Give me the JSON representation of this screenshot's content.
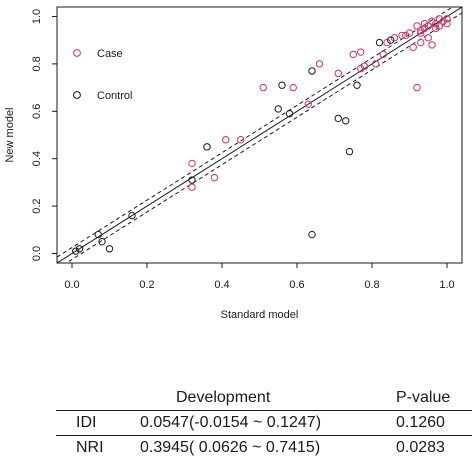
{
  "chart_data": {
    "type": "scatter",
    "xlabel": "Standard model",
    "ylabel": "New model",
    "xlim": [
      -0.04,
      1.04
    ],
    "ylim": [
      -0.04,
      1.04
    ],
    "xticks": [
      "0.0",
      "0.2",
      "0.4",
      "0.6",
      "0.8",
      "1.0"
    ],
    "yticks": [
      "0.0",
      "0.2",
      "0.4",
      "0.6",
      "0.8",
      "1.0"
    ],
    "grid": false,
    "legend_position": "top-left",
    "series": [
      {
        "name": "Case",
        "color": "#cc3366",
        "marker": "open-circle",
        "points": [
          [
            0.32,
            0.38
          ],
          [
            0.32,
            0.28
          ],
          [
            0.38,
            0.32
          ],
          [
            0.41,
            0.48
          ],
          [
            0.45,
            0.48
          ],
          [
            0.51,
            0.7
          ],
          [
            0.59,
            0.7
          ],
          [
            0.63,
            0.63
          ],
          [
            0.66,
            0.8
          ],
          [
            0.71,
            0.76
          ],
          [
            0.75,
            0.84
          ],
          [
            0.77,
            0.78
          ],
          [
            0.77,
            0.85
          ],
          [
            0.78,
            0.79
          ],
          [
            0.81,
            0.8
          ],
          [
            0.83,
            0.84
          ],
          [
            0.84,
            0.89
          ],
          [
            0.86,
            0.91
          ],
          [
            0.88,
            0.92
          ],
          [
            0.89,
            0.92
          ],
          [
            0.9,
            0.93
          ],
          [
            0.91,
            0.87
          ],
          [
            0.92,
            0.7
          ],
          [
            0.92,
            0.96
          ],
          [
            0.93,
            0.94
          ],
          [
            0.93,
            0.89
          ],
          [
            0.94,
            0.97
          ],
          [
            0.95,
            0.96
          ],
          [
            0.95,
            0.91
          ],
          [
            0.96,
            0.88
          ],
          [
            0.96,
            0.98
          ],
          [
            0.97,
            0.97
          ],
          [
            0.98,
            0.99
          ],
          [
            0.98,
            0.96
          ],
          [
            0.99,
            0.98
          ],
          [
            1.0,
            0.99
          ],
          [
            1.0,
            0.97
          ],
          [
            0.93,
            0.93
          ],
          [
            0.94,
            0.95
          ],
          [
            0.97,
            0.95
          ]
        ]
      },
      {
        "name": "Control",
        "color": "#1a1a1a",
        "marker": "open-circle",
        "points": [
          [
            0.01,
            0.01
          ],
          [
            0.02,
            0.02
          ],
          [
            0.07,
            0.08
          ],
          [
            0.08,
            0.05
          ],
          [
            0.1,
            0.02
          ],
          [
            0.16,
            0.16
          ],
          [
            0.32,
            0.31
          ],
          [
            0.36,
            0.45
          ],
          [
            0.55,
            0.61
          ],
          [
            0.56,
            0.71
          ],
          [
            0.58,
            0.59
          ],
          [
            0.64,
            0.77
          ],
          [
            0.64,
            0.08
          ],
          [
            0.71,
            0.57
          ],
          [
            0.73,
            0.56
          ],
          [
            0.74,
            0.43
          ],
          [
            0.76,
            0.71
          ],
          [
            0.82,
            0.89
          ],
          [
            0.85,
            0.9
          ]
        ]
      }
    ],
    "reference_lines": [
      {
        "type": "diagonal",
        "style": "solid",
        "from": [
          -0.04,
          -0.04
        ],
        "to": [
          1.04,
          1.04
        ]
      },
      {
        "type": "band-upper",
        "style": "dashed",
        "from": [
          -0.04,
          -0.015
        ],
        "to": [
          1.04,
          1.065
        ]
      },
      {
        "type": "band-lower",
        "style": "dashed",
        "from": [
          -0.04,
          -0.065
        ],
        "to": [
          1.04,
          1.015
        ]
      }
    ]
  },
  "stats_table": {
    "headers": [
      "",
      "Development",
      "P-value"
    ],
    "rows": [
      {
        "metric": "IDI",
        "estimate": "0.0547(-0.0154 ~ 0.1247)",
        "p_value": "0.1260"
      },
      {
        "metric": "NRI",
        "estimate": "0.3945( 0.0626 ~ 0.7415)",
        "p_value": "0.0283"
      }
    ]
  }
}
